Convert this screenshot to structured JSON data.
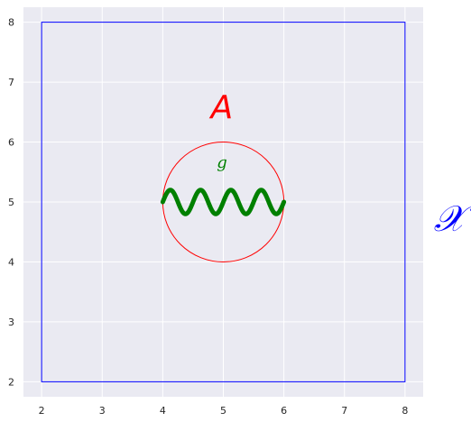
{
  "chart_data": {
    "type": "line",
    "title": "",
    "xlabel": "",
    "ylabel": "",
    "xlim": [
      1.7,
      8.3
    ],
    "ylim": [
      1.75,
      8.25
    ],
    "x_ticks": [
      2,
      3,
      4,
      5,
      6,
      7,
      8
    ],
    "y_ticks": [
      2,
      3,
      4,
      5,
      6,
      7,
      8
    ],
    "grid": true,
    "background": "#eaeaf2",
    "grid_color": "#ffffff",
    "shapes": [
      {
        "kind": "rectangle",
        "x": [
          2,
          8
        ],
        "y": [
          2,
          8
        ],
        "stroke": "#0000ff"
      },
      {
        "kind": "circle",
        "center": [
          5,
          5
        ],
        "radius": 1,
        "stroke": "#ff0000"
      }
    ],
    "series": [
      {
        "color": "#008000",
        "function": "y = 5 + 0.2 * sin(4 * pi * (x - 4))",
        "x_range": [
          4,
          6
        ]
      }
    ],
    "annotations": [
      {
        "text": "A",
        "x": 5,
        "y": 6.5,
        "color": "#ff0000"
      },
      {
        "text": "g",
        "x": 5,
        "y": 5.6,
        "color": "#008000"
      },
      {
        "text": "𝒳",
        "x": 8.75,
        "y": 4.75,
        "color": "#0000ff"
      }
    ]
  }
}
